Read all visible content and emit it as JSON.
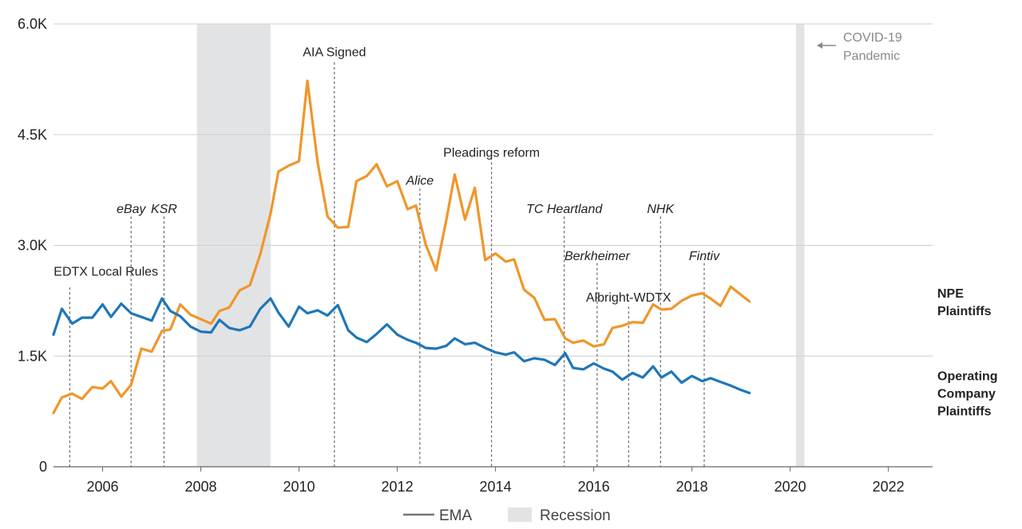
{
  "chart_data": {
    "type": "line",
    "title": "",
    "xlabel": "",
    "ylabel": "",
    "xlim": [
      2005.0,
      2022.9
    ],
    "ylim": [
      0,
      6000
    ],
    "y_ticks": [
      0,
      1500,
      3000,
      4500,
      6000
    ],
    "y_tick_labels": [
      "0",
      "1.5K",
      "3.0K",
      "4.5K",
      "6.0K"
    ],
    "x_ticks": [
      2006,
      2008,
      2010,
      2012,
      2014,
      2016,
      2018,
      2020,
      2022
    ],
    "x_tick_labels": [
      "2006",
      "2008",
      "2010",
      "2012",
      "2014",
      "2016",
      "2018",
      "2020",
      "2022"
    ],
    "grid": "horizontal",
    "legend": {
      "placement": "bottom-center",
      "line_label": "EMA",
      "band_label": "Recession"
    },
    "colors": {
      "npe": "#f0962a",
      "operating": "#1f77b8",
      "recession": "#e2e3e5",
      "grid": "#cfcfcf",
      "event_line": "#444444",
      "legend_line": "#777777"
    },
    "recessions": [
      {
        "start": 2007.92,
        "end": 2009.42
      },
      {
        "start": 2020.12,
        "end": 2020.29
      }
    ],
    "series": [
      {
        "name": "NPE Plaintiffs",
        "label": [
          "NPE",
          "Plaintiffs"
        ],
        "color": "#f0962a",
        "points": [
          [
            2005.0,
            730
          ],
          [
            2005.17,
            940
          ],
          [
            2005.38,
            990
          ],
          [
            2005.58,
            920
          ],
          [
            2005.79,
            1080
          ],
          [
            2006.0,
            1060
          ],
          [
            2006.17,
            1160
          ],
          [
            2006.38,
            950
          ],
          [
            2006.58,
            1110
          ],
          [
            2006.79,
            1600
          ],
          [
            2007.0,
            1560
          ],
          [
            2007.21,
            1840
          ],
          [
            2007.38,
            1860
          ],
          [
            2007.58,
            2200
          ],
          [
            2007.79,
            2060
          ],
          [
            2008.0,
            2000
          ],
          [
            2008.21,
            1940
          ],
          [
            2008.38,
            2110
          ],
          [
            2008.58,
            2160
          ],
          [
            2008.79,
            2390
          ],
          [
            2009.0,
            2460
          ],
          [
            2009.21,
            2880
          ],
          [
            2009.42,
            3430
          ],
          [
            2009.58,
            4000
          ],
          [
            2009.79,
            4080
          ],
          [
            2010.0,
            4140
          ],
          [
            2010.17,
            5230
          ],
          [
            2010.38,
            4120
          ],
          [
            2010.58,
            3390
          ],
          [
            2010.79,
            3240
          ],
          [
            2011.0,
            3250
          ],
          [
            2011.17,
            3870
          ],
          [
            2011.38,
            3940
          ],
          [
            2011.58,
            4100
          ],
          [
            2011.79,
            3800
          ],
          [
            2012.0,
            3870
          ],
          [
            2012.21,
            3490
          ],
          [
            2012.38,
            3540
          ],
          [
            2012.58,
            3010
          ],
          [
            2012.79,
            2660
          ],
          [
            2013.0,
            3350
          ],
          [
            2013.17,
            3960
          ],
          [
            2013.38,
            3350
          ],
          [
            2013.58,
            3780
          ],
          [
            2013.79,
            2800
          ],
          [
            2014.0,
            2890
          ],
          [
            2014.21,
            2780
          ],
          [
            2014.38,
            2810
          ],
          [
            2014.58,
            2400
          ],
          [
            2014.79,
            2290
          ],
          [
            2015.0,
            1990
          ],
          [
            2015.21,
            2000
          ],
          [
            2015.42,
            1740
          ],
          [
            2015.58,
            1680
          ],
          [
            2015.79,
            1710
          ],
          [
            2016.0,
            1630
          ],
          [
            2016.21,
            1660
          ],
          [
            2016.38,
            1880
          ],
          [
            2016.58,
            1910
          ],
          [
            2016.79,
            1960
          ],
          [
            2017.0,
            1950
          ],
          [
            2017.21,
            2200
          ],
          [
            2017.38,
            2130
          ],
          [
            2017.58,
            2140
          ],
          [
            2017.79,
            2250
          ],
          [
            2018.0,
            2320
          ],
          [
            2018.21,
            2350
          ],
          [
            2018.38,
            2280
          ],
          [
            2018.58,
            2180
          ],
          [
            2018.79,
            2440
          ],
          [
            2019.0,
            2330
          ],
          [
            2019.17,
            2240
          ]
        ]
      },
      {
        "name": "Operating Company Plaintiffs",
        "label": [
          "Operating",
          "Company",
          "Plaintiffs"
        ],
        "color": "#1f77b8",
        "points": [
          [
            2005.0,
            1790
          ],
          [
            2005.17,
            2140
          ],
          [
            2005.38,
            1940
          ],
          [
            2005.58,
            2020
          ],
          [
            2005.79,
            2020
          ],
          [
            2006.0,
            2200
          ],
          [
            2006.17,
            2030
          ],
          [
            2006.38,
            2210
          ],
          [
            2006.58,
            2080
          ],
          [
            2006.79,
            2030
          ],
          [
            2007.0,
            1980
          ],
          [
            2007.21,
            2280
          ],
          [
            2007.38,
            2110
          ],
          [
            2007.58,
            2040
          ],
          [
            2007.79,
            1900
          ],
          [
            2008.0,
            1830
          ],
          [
            2008.21,
            1820
          ],
          [
            2008.38,
            1990
          ],
          [
            2008.58,
            1880
          ],
          [
            2008.79,
            1850
          ],
          [
            2009.0,
            1900
          ],
          [
            2009.21,
            2140
          ],
          [
            2009.42,
            2280
          ],
          [
            2009.58,
            2090
          ],
          [
            2009.79,
            1900
          ],
          [
            2010.0,
            2170
          ],
          [
            2010.17,
            2080
          ],
          [
            2010.38,
            2120
          ],
          [
            2010.58,
            2050
          ],
          [
            2010.79,
            2190
          ],
          [
            2011.0,
            1850
          ],
          [
            2011.17,
            1750
          ],
          [
            2011.38,
            1690
          ],
          [
            2011.58,
            1800
          ],
          [
            2011.79,
            1930
          ],
          [
            2012.0,
            1790
          ],
          [
            2012.21,
            1720
          ],
          [
            2012.38,
            1680
          ],
          [
            2012.58,
            1610
          ],
          [
            2012.79,
            1600
          ],
          [
            2013.0,
            1640
          ],
          [
            2013.17,
            1740
          ],
          [
            2013.38,
            1660
          ],
          [
            2013.58,
            1680
          ],
          [
            2013.79,
            1610
          ],
          [
            2014.0,
            1550
          ],
          [
            2014.21,
            1520
          ],
          [
            2014.38,
            1550
          ],
          [
            2014.58,
            1430
          ],
          [
            2014.79,
            1470
          ],
          [
            2015.0,
            1450
          ],
          [
            2015.21,
            1380
          ],
          [
            2015.42,
            1540
          ],
          [
            2015.58,
            1340
          ],
          [
            2015.79,
            1320
          ],
          [
            2016.0,
            1400
          ],
          [
            2016.21,
            1330
          ],
          [
            2016.38,
            1290
          ],
          [
            2016.58,
            1180
          ],
          [
            2016.79,
            1270
          ],
          [
            2017.0,
            1210
          ],
          [
            2017.21,
            1360
          ],
          [
            2017.38,
            1210
          ],
          [
            2017.58,
            1290
          ],
          [
            2017.79,
            1140
          ],
          [
            2018.0,
            1230
          ],
          [
            2018.21,
            1160
          ],
          [
            2018.38,
            1200
          ],
          [
            2018.58,
            1150
          ],
          [
            2018.79,
            1100
          ],
          [
            2019.0,
            1040
          ],
          [
            2019.17,
            1000
          ]
        ]
      }
    ],
    "events": [
      {
        "label": "EDTX Local Rules",
        "x": 2005.33,
        "y_top": 2430,
        "label_y": 2590,
        "italic": false,
        "anchor": "start",
        "dx": -20
      },
      {
        "label": "eBay",
        "x": 2006.58,
        "y_top": 3390,
        "label_y": 3440,
        "italic": true,
        "anchor": "middle",
        "dx": 0
      },
      {
        "label": "KSR",
        "x": 2007.25,
        "y_top": 3390,
        "label_y": 3440,
        "italic": true,
        "anchor": "middle",
        "dx": 0
      },
      {
        "label": "AIA Signed",
        "x": 2010.72,
        "y_top": 5480,
        "label_y": 5560,
        "italic": false,
        "anchor": "middle",
        "dx": 0
      },
      {
        "label": "Alice",
        "x": 2012.46,
        "y_top": 3770,
        "label_y": 3820,
        "italic": true,
        "anchor": "middle",
        "dx": 0
      },
      {
        "label": "Pleadings reform",
        "x": 2013.92,
        "y_top": 4190,
        "label_y": 4200,
        "italic": false,
        "anchor": "middle",
        "dx": 0
      },
      {
        "label": "TC Heartland",
        "x": 2015.4,
        "y_top": 3390,
        "label_y": 3440,
        "italic": true,
        "anchor": "middle",
        "dx": 0
      },
      {
        "label": "Berkheimer",
        "x": 2016.07,
        "y_top": 2760,
        "label_y": 2800,
        "italic": true,
        "anchor": "middle",
        "dx": 0
      },
      {
        "label": "Albright-WDTX",
        "x": 2016.71,
        "y_top": 2170,
        "label_y": 2240,
        "italic": false,
        "anchor": "middle",
        "dx": 0
      },
      {
        "label": "NHK",
        "x": 2017.36,
        "y_top": 3390,
        "label_y": 3440,
        "italic": true,
        "anchor": "middle",
        "dx": 0
      },
      {
        "label": "Fintiv",
        "x": 2018.25,
        "y_top": 2760,
        "label_y": 2800,
        "italic": true,
        "anchor": "middle",
        "dx": 0
      }
    ],
    "covid_note": {
      "lines": [
        "COVID-19",
        "Pandemic"
      ]
    }
  }
}
